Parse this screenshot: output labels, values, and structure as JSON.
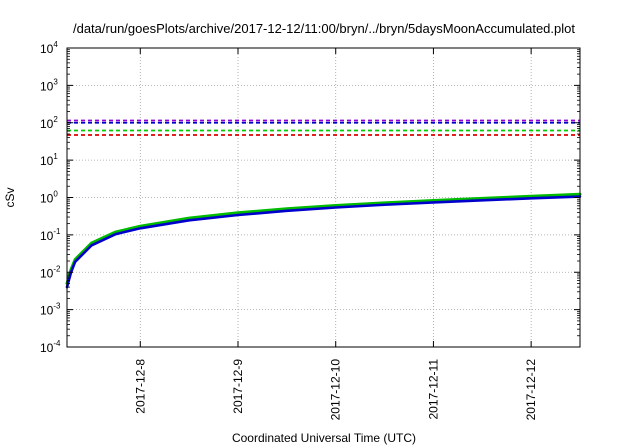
{
  "chart_data": {
    "type": "line",
    "title": "/data/run/goesPlots/archive/2017-12-12/11:00/bryn/../bryn/5daysMoonAccumulated.plot",
    "xlabel": "Coordinated Universal Time (UTC)",
    "ylabel": "cSv",
    "y_scale": "log",
    "ylim": [
      0.0001,
      10000
    ],
    "xlim": [
      "2017-12-07T06:00",
      "2017-12-12T12:00"
    ],
    "y_ticks": [
      {
        "base": "10",
        "exp": "-4"
      },
      {
        "base": "10",
        "exp": "-3"
      },
      {
        "base": "10",
        "exp": "-2"
      },
      {
        "base": "10",
        "exp": "-1"
      },
      {
        "base": "10",
        "exp": "0"
      },
      {
        "base": "10",
        "exp": "1"
      },
      {
        "base": "10",
        "exp": "2"
      },
      {
        "base": "10",
        "exp": "3"
      },
      {
        "base": "10",
        "exp": "4"
      }
    ],
    "x_ticks": [
      "2017-12-8",
      "2017-12-9",
      "2017-12-10",
      "2017-12-11",
      "2017-12-12"
    ],
    "grid": true,
    "series": [
      {
        "color": "#00bb00",
        "style": "solid",
        "x": [
          "2017-12-07T06:00",
          "2017-12-07T07:00",
          "2017-12-07T08:00",
          "2017-12-07T12:00",
          "2017-12-07T18:00",
          "2017-12-08T00:00",
          "2017-12-08T12:00",
          "2017-12-09T00:00",
          "2017-12-09T12:00",
          "2017-12-10T00:00",
          "2017-12-10T12:00",
          "2017-12-11T00:00",
          "2017-12-11T12:00",
          "2017-12-12T00:00",
          "2017-12-12T12:00"
        ],
        "values": [
          0.005,
          0.012,
          0.022,
          0.06,
          0.12,
          0.17,
          0.28,
          0.39,
          0.5,
          0.61,
          0.72,
          0.83,
          0.95,
          1.08,
          1.22
        ]
      },
      {
        "color": "#0000cc",
        "style": "solid",
        "x": [
          "2017-12-07T06:00",
          "2017-12-07T07:00",
          "2017-12-07T08:00",
          "2017-12-07T12:00",
          "2017-12-07T18:00",
          "2017-12-08T00:00",
          "2017-12-08T12:00",
          "2017-12-09T00:00",
          "2017-12-09T12:00",
          "2017-12-10T00:00",
          "2017-12-10T12:00",
          "2017-12-11T00:00",
          "2017-12-11T12:00",
          "2017-12-12T00:00",
          "2017-12-12T12:00"
        ],
        "values": [
          0.004,
          0.01,
          0.019,
          0.052,
          0.105,
          0.15,
          0.245,
          0.34,
          0.44,
          0.54,
          0.64,
          0.74,
          0.84,
          0.95,
          1.06
        ]
      }
    ],
    "reference_lines": [
      {
        "color": "#9400d3",
        "style": "dashed",
        "value": 115
      },
      {
        "color": "#0000cc",
        "style": "dashed",
        "value": 100
      },
      {
        "color": "#00cc00",
        "style": "dashed",
        "value": 62
      },
      {
        "color": "#dd0000",
        "style": "dashed",
        "value": 47
      }
    ]
  }
}
